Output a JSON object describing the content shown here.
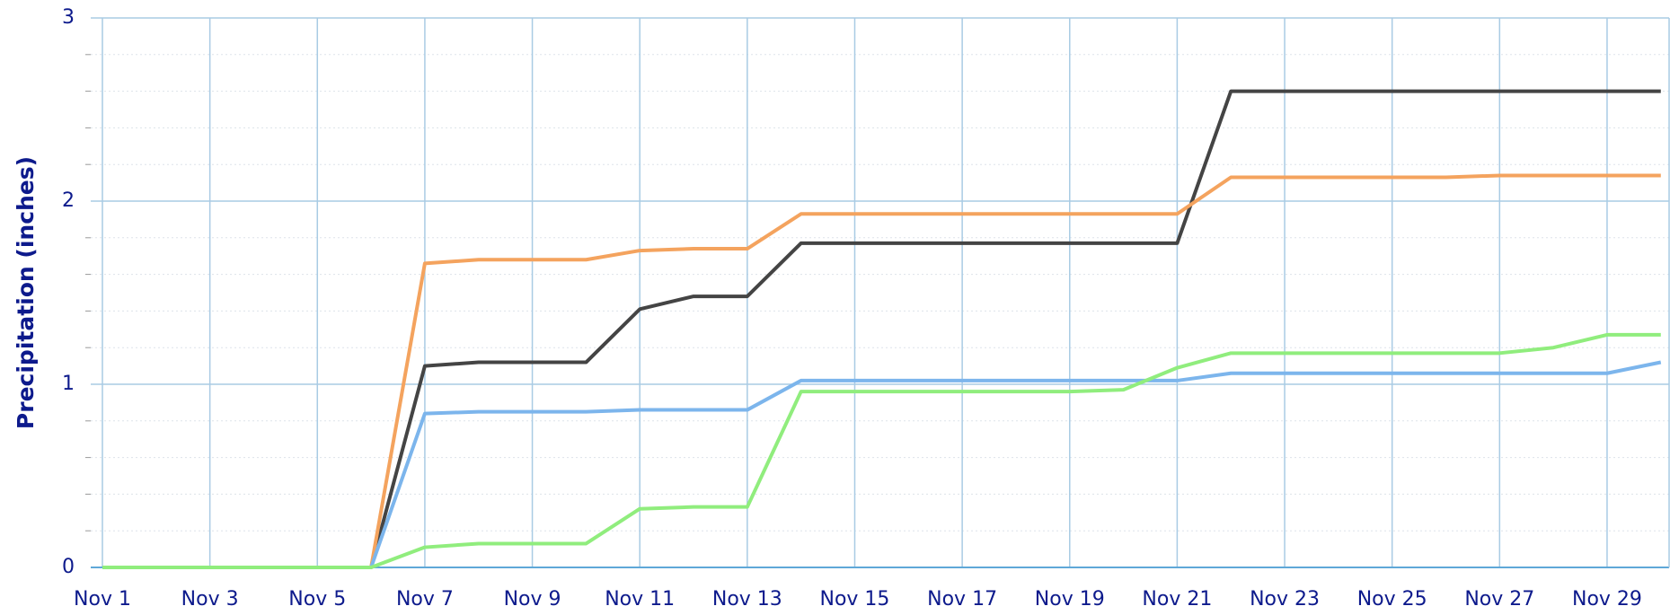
{
  "chart_data": {
    "type": "line",
    "ylabel": "Precipitation (inches)",
    "categories": [
      "Nov 1",
      null,
      "Nov 3",
      null,
      "Nov 5",
      null,
      "Nov 7",
      null,
      "Nov 9",
      null,
      "Nov 11",
      null,
      "Nov 13",
      null,
      "Nov 15",
      null,
      "Nov 17",
      null,
      "Nov 19",
      null,
      "Nov 21",
      null,
      "Nov 23",
      null,
      "Nov 25",
      null,
      "Nov 27",
      null,
      "Nov 29",
      null
    ],
    "series": [
      {
        "color": "#444444",
        "values": [
          0,
          0,
          0,
          0,
          0,
          0,
          1.1,
          1.12,
          1.12,
          1.12,
          1.41,
          1.48,
          1.48,
          1.77,
          1.77,
          1.77,
          1.77,
          1.77,
          1.77,
          1.77,
          1.77,
          2.6,
          2.6,
          2.6,
          2.6,
          2.6,
          2.6,
          2.6,
          2.6,
          2.6
        ]
      },
      {
        "color": "#f4a35e",
        "values": [
          0,
          0,
          0,
          0,
          0,
          0,
          1.66,
          1.68,
          1.68,
          1.68,
          1.73,
          1.74,
          1.74,
          1.93,
          1.93,
          1.93,
          1.93,
          1.93,
          1.93,
          1.93,
          1.93,
          2.13,
          2.13,
          2.13,
          2.13,
          2.13,
          2.14,
          2.14,
          2.14,
          2.14
        ]
      },
      {
        "color": "#7cb5ec",
        "values": [
          0,
          0,
          0,
          0,
          0,
          0,
          0.84,
          0.85,
          0.85,
          0.85,
          0.86,
          0.86,
          0.86,
          1.02,
          1.02,
          1.02,
          1.02,
          1.02,
          1.02,
          1.02,
          1.02,
          1.06,
          1.06,
          1.06,
          1.06,
          1.06,
          1.06,
          1.06,
          1.06,
          1.12
        ]
      },
      {
        "color": "#90ed7d",
        "values": [
          0,
          0,
          0,
          0,
          0,
          0,
          0.11,
          0.13,
          0.13,
          0.13,
          0.32,
          0.33,
          0.33,
          0.96,
          0.96,
          0.96,
          0.96,
          0.96,
          0.96,
          0.97,
          1.09,
          1.17,
          1.17,
          1.17,
          1.17,
          1.17,
          1.17,
          1.2,
          1.27,
          1.27
        ]
      }
    ],
    "ylim": [
      0,
      3
    ],
    "yticks": [
      0,
      1,
      2,
      3
    ],
    "grid": true
  }
}
